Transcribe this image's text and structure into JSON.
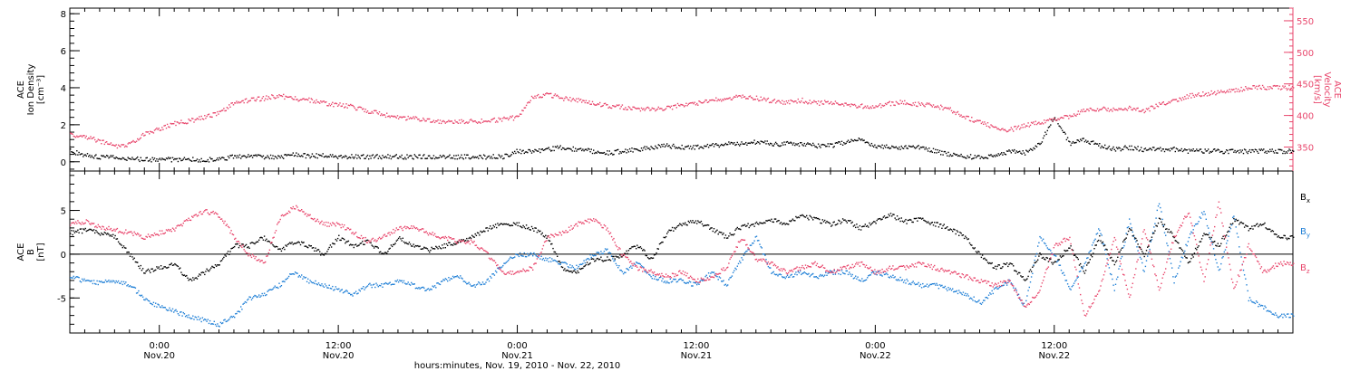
{
  "chart_data": {
    "type": "scatter",
    "colors": {
      "black": "#000000",
      "red": "#e8456b",
      "blue": "#1f7fd6"
    },
    "x_axis": {
      "unit": "hours since Nov.19 18:00",
      "range": [
        0,
        82
      ],
      "major_ticks": [
        6,
        18,
        30,
        42,
        54,
        66
      ],
      "tick_labels": [
        {
          "time": "0:00",
          "date": "Nov.20"
        },
        {
          "time": "12:00",
          "date": "Nov.20"
        },
        {
          "time": "0:00",
          "date": "Nov.21"
        },
        {
          "time": "12:00",
          "date": "Nov.21"
        },
        {
          "time": "0:00",
          "date": "Nov.22"
        },
        {
          "time": "12:00",
          "date": "Nov.22"
        }
      ],
      "label": "hours:minutes, Nov. 19, 2010 - Nov. 22, 2010"
    },
    "panels": [
      {
        "id": "plasma",
        "left_axis": {
          "title_lines": [
            "ACE",
            "Ion Density"
          ],
          "unit": "[cm⁻³]",
          "range": [
            -0.5,
            8.3
          ],
          "ticks": [
            0,
            2,
            4,
            6,
            8
          ]
        },
        "right_axis": {
          "title_lines": [
            "ACE",
            "Velocity"
          ],
          "unit": "[km/s]",
          "range": [
            312,
            570
          ],
          "ticks": [
            350,
            400,
            450,
            500,
            550
          ]
        },
        "series": [
          {
            "color_key": "black",
            "axis": "left",
            "x": [
              0,
              1,
              2,
              3,
              4,
              5,
              6,
              7,
              8,
              9,
              10,
              11,
              12,
              13,
              14,
              15,
              16,
              17,
              18,
              19,
              20,
              21,
              22,
              23,
              24,
              25,
              26,
              27,
              28,
              29,
              30,
              31,
              32,
              33,
              34,
              35,
              36,
              37,
              38,
              39,
              40,
              41,
              42,
              43,
              44,
              45,
              46,
              47,
              48,
              49,
              50,
              51,
              52,
              53,
              54,
              55,
              56,
              57,
              58,
              59,
              60,
              61,
              62,
              63,
              64,
              65,
              66,
              67,
              68,
              69,
              70,
              71,
              72,
              73,
              74,
              75,
              76,
              77,
              78,
              79,
              80,
              81,
              82
            ],
            "y": [
              0.6,
              0.4,
              0.3,
              0.25,
              0.2,
              0.15,
              0.15,
              0.15,
              0.15,
              0.15,
              0.15,
              0.3,
              0.3,
              0.3,
              0.3,
              0.4,
              0.35,
              0.35,
              0.3,
              0.3,
              0.3,
              0.3,
              0.3,
              0.3,
              0.3,
              0.3,
              0.3,
              0.3,
              0.3,
              0.3,
              0.6,
              0.6,
              0.7,
              0.8,
              0.7,
              0.6,
              0.5,
              0.6,
              0.7,
              0.8,
              0.9,
              0.8,
              0.8,
              0.9,
              1.0,
              1.0,
              1.1,
              1.0,
              1.0,
              1.0,
              0.9,
              0.9,
              1.1,
              1.2,
              0.9,
              0.8,
              0.8,
              0.8,
              0.6,
              0.4,
              0.3,
              0.3,
              0.3,
              0.6,
              0.5,
              1.0,
              2.5,
              1.0,
              1.2,
              0.9,
              0.7,
              0.8,
              0.7,
              0.7,
              0.7,
              0.6,
              0.6,
              0.6,
              0.6,
              0.6,
              0.6,
              0.6,
              0.6
            ]
          },
          {
            "color_key": "red",
            "axis": "right",
            "x": [
              0,
              1,
              2,
              3,
              4,
              5,
              6,
              7,
              8,
              9,
              10,
              11,
              12,
              13,
              14,
              15,
              16,
              17,
              18,
              19,
              20,
              21,
              22,
              23,
              24,
              25,
              26,
              27,
              28,
              29,
              30,
              31,
              32,
              33,
              34,
              35,
              36,
              37,
              38,
              39,
              40,
              41,
              42,
              43,
              44,
              45,
              46,
              47,
              48,
              49,
              50,
              51,
              52,
              53,
              54,
              55,
              56,
              57,
              58,
              59,
              60,
              61,
              62,
              63,
              64,
              65,
              66,
              67,
              68,
              69,
              70,
              71,
              72,
              73,
              74,
              75,
              76,
              77,
              78,
              79,
              80,
              81,
              82
            ],
            "y": [
              370,
              368,
              360,
              352,
              355,
              372,
              380,
              388,
              392,
              398,
              405,
              420,
              425,
              428,
              432,
              428,
              425,
              420,
              418,
              414,
              408,
              402,
              398,
              396,
              392,
              392,
              392,
              392,
              392,
              395,
              398,
              430,
              435,
              428,
              425,
              420,
              416,
              414,
              412,
              410,
              412,
              418,
              420,
              425,
              428,
              432,
              428,
              424,
              422,
              425,
              420,
              422,
              418,
              416,
              415,
              420,
              422,
              418,
              416,
              410,
              398,
              390,
              382,
              378,
              385,
              390,
              395,
              400,
              408,
              412,
              410,
              412,
              408,
              418,
              425,
              432,
              435,
              438,
              440,
              445,
              445,
              445,
              445
            ]
          }
        ]
      },
      {
        "id": "mag",
        "left_axis": {
          "title_lines": [
            "ACE",
            "B"
          ],
          "unit": "[nT]",
          "range": [
            -9,
            9.5
          ],
          "ticks": [
            -5,
            0,
            5
          ]
        },
        "zero_line": true,
        "legend": [
          {
            "label": "B",
            "sub": "x",
            "color_key": "black"
          },
          {
            "label": "B",
            "sub": "y",
            "color_key": "blue"
          },
          {
            "label": "B",
            "sub": "z",
            "color_key": "red"
          }
        ],
        "series": [
          {
            "color_key": "black",
            "axis": "left",
            "x": [
              0,
              1,
              2,
              3,
              4,
              5,
              6,
              7,
              8,
              9,
              10,
              11,
              12,
              13,
              14,
              15,
              16,
              17,
              18,
              19,
              20,
              21,
              22,
              23,
              24,
              25,
              26,
              27,
              28,
              29,
              30,
              31,
              32,
              33,
              34,
              35,
              36,
              37,
              38,
              39,
              40,
              41,
              42,
              43,
              44,
              45,
              46,
              47,
              48,
              49,
              50,
              51,
              52,
              53,
              54,
              55,
              56,
              57,
              58,
              59,
              60,
              61,
              62,
              63,
              64,
              65,
              66,
              67,
              68,
              69,
              70,
              71,
              72,
              73,
              74,
              75,
              76,
              77,
              78,
              79,
              80,
              81,
              82
            ],
            "y": [
              2.5,
              2.8,
              2.5,
              2.0,
              0,
              -2.0,
              -1.5,
              -1.0,
              -3.0,
              -2.0,
              -1.0,
              1.0,
              1.0,
              2.0,
              0.5,
              1.5,
              1.0,
              0,
              2.0,
              1.0,
              1.5,
              0,
              2.0,
              1.0,
              0.5,
              1.0,
              1.5,
              2.0,
              3.0,
              3.5,
              3.5,
              3.0,
              2.0,
              -1.5,
              -2.0,
              -0.5,
              -0.5,
              0,
              1.0,
              -0.5,
              2.5,
              3.5,
              3.8,
              3.0,
              2.0,
              3.2,
              3.5,
              4.0,
              3.5,
              4.5,
              4.0,
              3.5,
              4.0,
              3.0,
              3.8,
              4.5,
              3.8,
              4.0,
              3.5,
              3.0,
              2.0,
              0,
              -1.5,
              -1.0,
              -3.0,
              0,
              -1.0,
              1.0,
              -2.0,
              2.0,
              -1.0,
              3.0,
              0,
              4.0,
              2.0,
              -1.0,
              2.5,
              1.0,
              4.0,
              3.0,
              3.5,
              2.0,
              2.0
            ]
          },
          {
            "color_key": "blue",
            "axis": "left",
            "x": [
              0,
              1,
              2,
              3,
              4,
              5,
              6,
              7,
              8,
              9,
              10,
              11,
              12,
              13,
              14,
              15,
              16,
              17,
              18,
              19,
              20,
              21,
              22,
              23,
              24,
              25,
              26,
              27,
              28,
              29,
              30,
              31,
              32,
              33,
              34,
              35,
              36,
              37,
              38,
              39,
              40,
              41,
              42,
              43,
              44,
              45,
              46,
              47,
              48,
              49,
              50,
              51,
              52,
              53,
              54,
              55,
              56,
              57,
              58,
              59,
              60,
              61,
              62,
              63,
              64,
              65,
              66,
              67,
              68,
              69,
              70,
              71,
              72,
              73,
              74,
              75,
              76,
              77,
              78,
              79,
              80,
              81,
              82
            ],
            "y": [
              -2.5,
              -3.0,
              -3.2,
              -3.0,
              -3.5,
              -5.0,
              -6.0,
              -6.5,
              -7.0,
              -7.5,
              -8.0,
              -7.0,
              -5.0,
              -4.5,
              -3.5,
              -2.0,
              -3.0,
              -3.5,
              -4.0,
              -4.5,
              -3.5,
              -3.5,
              -3.0,
              -3.5,
              -4.0,
              -3.0,
              -2.5,
              -3.5,
              -3.0,
              -1.0,
              0,
              0,
              -0.5,
              -1.0,
              -1.5,
              0,
              0.5,
              -2.0,
              -1.0,
              -2.5,
              -3.0,
              -3.0,
              -3.5,
              -2.0,
              -3.5,
              -0.5,
              2.0,
              -2.0,
              -2.5,
              -2.0,
              -2.5,
              -2.0,
              -2.0,
              -3.0,
              -2.0,
              -2.5,
              -3.0,
              -3.5,
              -3.5,
              -4.0,
              -4.5,
              -5.5,
              -4.0,
              -3.0,
              -6.0,
              2.0,
              0,
              -4.0,
              -1.0,
              3.0,
              -4.0,
              4.0,
              -2.0,
              6.0,
              -3.0,
              2.0,
              5.0,
              -2.0,
              4.5,
              -5.0,
              -6.0,
              -7.0,
              -7.0
            ]
          },
          {
            "color_key": "red",
            "axis": "left",
            "x": [
              0,
              1,
              2,
              3,
              4,
              5,
              6,
              7,
              8,
              9,
              10,
              11,
              12,
              13,
              14,
              15,
              16,
              17,
              18,
              19,
              20,
              21,
              22,
              23,
              24,
              25,
              26,
              27,
              28,
              29,
              30,
              31,
              32,
              33,
              34,
              35,
              36,
              37,
              38,
              39,
              40,
              41,
              42,
              43,
              44,
              45,
              46,
              47,
              48,
              49,
              50,
              51,
              52,
              53,
              54,
              55,
              56,
              57,
              58,
              59,
              60,
              61,
              62,
              63,
              64,
              65,
              66,
              67,
              68,
              69,
              70,
              71,
              72,
              73,
              74,
              75,
              76,
              77,
              78,
              79,
              80,
              81,
              82
            ],
            "y": [
              3.5,
              3.8,
              3.2,
              2.8,
              2.5,
              2.0,
              2.5,
              3.0,
              4.0,
              5.0,
              4.5,
              2.0,
              0,
              -1.0,
              4.0,
              5.5,
              4.5,
              3.5,
              3.5,
              2.5,
              1.5,
              2.0,
              3.0,
              3.2,
              2.5,
              2.0,
              1.5,
              1.5,
              0,
              -2.0,
              -2.0,
              -1.5,
              2.0,
              2.5,
              3.5,
              4.0,
              3.0,
              0,
              -1.5,
              -2.0,
              -2.5,
              -2.0,
              -3.0,
              -2.5,
              -1.5,
              2.0,
              -0.5,
              -1.0,
              -2.0,
              -1.5,
              -1.0,
              -2.0,
              -1.5,
              -1.0,
              -2.0,
              -1.5,
              -1.5,
              -1.0,
              -1.5,
              -2.0,
              -2.5,
              -3.0,
              -3.5,
              -3.0,
              -6.0,
              -4.0,
              1.0,
              2.0,
              -7.0,
              -4.0,
              2.0,
              -5.0,
              3.0,
              -4.0,
              2.0,
              5.0,
              -3.0,
              6.0,
              -4.0,
              1.0,
              -2.0,
              -1.0,
              -1.0
            ]
          }
        ]
      }
    ]
  }
}
